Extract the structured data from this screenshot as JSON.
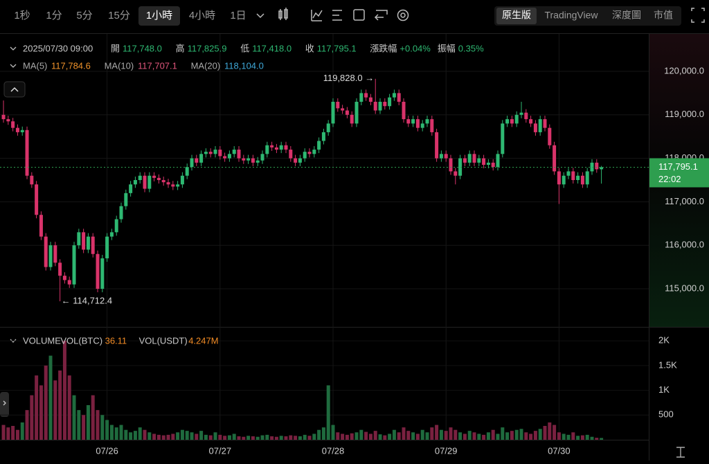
{
  "toolbar": {
    "intervals": [
      "1秒",
      "1分",
      "5分",
      "15分",
      "1小時",
      "4小時",
      "1日"
    ],
    "active_interval": 4,
    "views": [
      "原生版",
      "TradingView",
      "深度圖",
      "市值"
    ],
    "active_view": 0
  },
  "info": {
    "time": "2025/07/30 09:00",
    "items": [
      {
        "label": "開",
        "value": "117,748.0"
      },
      {
        "label": "高",
        "value": "117,825.9"
      },
      {
        "label": "低",
        "value": "117,418.0"
      },
      {
        "label": "收",
        "value": "117,795.1"
      },
      {
        "label": "漲跌幅",
        "value": "+0.04%"
      },
      {
        "label": "振幅",
        "value": "0.35%"
      }
    ],
    "ma": [
      {
        "label": "MA(5)",
        "value": "117,784.6",
        "color": "#f0932b"
      },
      {
        "label": "MA(10)",
        "value": "117,707.1",
        "color": "#e0567c"
      },
      {
        "label": "MA(20)",
        "value": "118,104.0",
        "color": "#3fa9d9"
      }
    ]
  },
  "chart_data": {
    "type": "candlestick",
    "up_color": "#2eb872",
    "down_color": "#d9336a",
    "volume_up_color": "#1f6b3e",
    "volume_down_color": "#7a2140",
    "x": [
      0,
      1,
      2,
      3,
      4,
      5,
      6,
      7,
      8,
      9,
      10,
      11,
      12,
      13,
      14,
      15,
      16,
      17,
      18,
      19,
      20,
      21,
      22,
      23,
      24,
      25,
      26,
      27,
      28,
      29,
      30,
      31,
      32,
      33,
      34,
      35,
      36,
      37,
      38,
      39,
      40,
      41,
      42,
      43,
      44,
      45,
      46,
      47,
      48,
      49,
      50,
      51,
      52,
      53,
      54,
      55,
      56,
      57,
      58,
      59,
      60,
      61,
      62,
      63,
      64,
      65,
      66,
      67,
      68,
      69,
      70,
      71,
      72,
      73,
      74,
      75,
      76,
      77,
      78,
      79,
      80,
      81,
      82,
      83,
      84,
      85,
      86,
      87,
      88,
      89,
      90,
      91,
      92,
      93,
      94,
      95,
      96,
      97,
      98,
      99,
      100,
      101,
      102,
      103,
      104,
      105,
      106,
      107,
      108,
      109,
      110,
      111,
      112,
      113,
      114,
      115,
      116,
      117,
      118,
      119,
      120,
      121,
      122,
      123,
      124,
      125,
      126,
      127
    ],
    "open": [
      119000,
      118900,
      118850,
      118700,
      118600,
      118650,
      117600,
      117400,
      116700,
      116200,
      115500,
      116000,
      115600,
      115300,
      115200,
      115100,
      116000,
      116300,
      115900,
      116200,
      115800,
      115000,
      115700,
      116200,
      116300,
      116600,
      116900,
      117200,
      117400,
      117500,
      117600,
      117300,
      117600,
      117550,
      117500,
      117450,
      117400,
      117350,
      117400,
      117600,
      117800,
      118000,
      117900,
      118100,
      118150,
      118100,
      118200,
      118050,
      118000,
      118100,
      118200,
      118000,
      117950,
      118000,
      117900,
      117950,
      118100,
      118300,
      118250,
      118200,
      118300,
      118200,
      118000,
      117900,
      118000,
      118150,
      118100,
      118200,
      118400,
      118600,
      118800,
      119300,
      119150,
      119100,
      119000,
      118800,
      119300,
      119500,
      119400,
      119300,
      119100,
      119300,
      119200,
      119400,
      119500,
      119300,
      118900,
      118800,
      118900,
      118700,
      118800,
      118900,
      118600,
      118000,
      118100,
      118000,
      117700,
      117600,
      118000,
      117900,
      118100,
      117900,
      118000,
      117850,
      117900,
      117800,
      118100,
      118800,
      118900,
      118800,
      119000,
      119050,
      118900,
      118800,
      118600,
      118900,
      118700,
      118300,
      117700,
      117400,
      117600,
      117700,
      117500,
      117600,
      117400,
      117700,
      117900,
      117748
    ],
    "high": [
      119330,
      118980,
      118930,
      118780,
      118730,
      118730,
      117680,
      117480,
      116780,
      116280,
      116080,
      116080,
      115680,
      115380,
      115280,
      116080,
      116380,
      116380,
      116280,
      116280,
      115880,
      115780,
      116280,
      116380,
      116680,
      116980,
      117280,
      117480,
      117580,
      117680,
      117680,
      117680,
      117680,
      117630,
      117580,
      117530,
      117480,
      117480,
      117680,
      117880,
      118080,
      118080,
      118180,
      118230,
      118230,
      118280,
      118280,
      118130,
      118180,
      118280,
      118280,
      118080,
      118080,
      118080,
      118030,
      118180,
      118380,
      118380,
      118330,
      118380,
      118380,
      118280,
      118080,
      118080,
      118230,
      118230,
      118280,
      118480,
      118680,
      118880,
      119380,
      119380,
      119230,
      119180,
      119080,
      119380,
      119580,
      119580,
      119480,
      119828,
      119380,
      119380,
      119480,
      119580,
      119580,
      119380,
      118980,
      118980,
      118980,
      118880,
      118980,
      118980,
      118680,
      118180,
      118180,
      118080,
      117780,
      118080,
      118080,
      118180,
      118180,
      118080,
      118080,
      117980,
      117980,
      118180,
      118880,
      118980,
      118980,
      119080,
      119300,
      119130,
      118980,
      118880,
      118980,
      118980,
      118780,
      118380,
      117780,
      117680,
      117780,
      117780,
      117680,
      117680,
      117780,
      117980,
      117980,
      117825.9
    ],
    "low": [
      118820,
      118770,
      118620,
      118520,
      118520,
      117520,
      117320,
      116620,
      116120,
      115420,
      115420,
      115520,
      114712.4,
      115120,
      115020,
      115020,
      115920,
      115820,
      115820,
      115720,
      114920,
      114920,
      115620,
      116120,
      116220,
      116520,
      116820,
      117120,
      117320,
      117420,
      117220,
      117220,
      117470,
      117420,
      117370,
      117320,
      117270,
      117270,
      117320,
      117520,
      117720,
      117820,
      117820,
      118020,
      118020,
      118020,
      117970,
      117920,
      117920,
      118020,
      117920,
      117870,
      117870,
      117820,
      117820,
      117870,
      118020,
      118170,
      118120,
      118120,
      118120,
      117920,
      117820,
      117820,
      117920,
      118020,
      118020,
      118120,
      118320,
      118520,
      118720,
      119070,
      119020,
      118920,
      118720,
      118720,
      119220,
      119320,
      119220,
      119020,
      119020,
      119120,
      119120,
      119320,
      119220,
      118820,
      118720,
      118720,
      118620,
      118620,
      118720,
      118520,
      117920,
      117920,
      117920,
      117620,
      117400,
      117520,
      117820,
      117820,
      117820,
      117820,
      117770,
      117770,
      117720,
      117720,
      118020,
      118720,
      118720,
      118720,
      118920,
      118820,
      118720,
      118520,
      118520,
      118620,
      118220,
      117620,
      116950,
      117320,
      117520,
      117420,
      117420,
      117320,
      117320,
      117620,
      117668,
      117418
    ],
    "close": [
      118900,
      118850,
      118700,
      118600,
      118650,
      117600,
      117400,
      116700,
      116200,
      115500,
      116000,
      115600,
      115300,
      115200,
      115100,
      116000,
      116300,
      115900,
      116200,
      115800,
      115000,
      115700,
      116200,
      116300,
      116600,
      116900,
      117200,
      117400,
      117500,
      117600,
      117300,
      117600,
      117550,
      117500,
      117450,
      117400,
      117350,
      117400,
      117600,
      117800,
      118000,
      117900,
      118100,
      118150,
      118100,
      118200,
      118050,
      118000,
      118100,
      118200,
      118000,
      117950,
      118000,
      117900,
      117950,
      118100,
      118300,
      118250,
      118200,
      118300,
      118200,
      118000,
      117900,
      118000,
      118150,
      118100,
      118200,
      118400,
      118600,
      118800,
      119300,
      119150,
      119100,
      119000,
      118800,
      119300,
      119500,
      119400,
      119300,
      119100,
      119300,
      119200,
      119400,
      119500,
      119300,
      118900,
      118800,
      118900,
      118700,
      118800,
      118900,
      118600,
      118000,
      118100,
      118000,
      117700,
      117600,
      118000,
      117900,
      118100,
      117900,
      118000,
      117850,
      117900,
      117800,
      118100,
      118800,
      118900,
      118800,
      119000,
      119050,
      118900,
      118800,
      118600,
      118900,
      118700,
      118300,
      117700,
      117400,
      117600,
      117700,
      117500,
      117600,
      117400,
      117700,
      117900,
      117748,
      117795.1
    ],
    "xlim": [
      -0.74,
      137.06
    ],
    "xticks": [
      {
        "value": 22,
        "label": "07/26"
      },
      {
        "value": 46,
        "label": "07/27"
      },
      {
        "value": 70,
        "label": "07/28"
      },
      {
        "value": 94,
        "label": "07/29"
      },
      {
        "value": 118,
        "label": "07/30"
      }
    ],
    "ylim": [
      114124,
      120876
    ],
    "yticks": [
      {
        "value": 115000,
        "label": "115,000.0"
      },
      {
        "value": 116000,
        "label": "116,000.0"
      },
      {
        "value": 117000,
        "label": "117,000.0"
      },
      {
        "value": 118000,
        "label": "118,000.0"
      },
      {
        "value": 119000,
        "label": "119,000.0"
      },
      {
        "value": 120000,
        "label": "120,000.0"
      }
    ],
    "grid": true,
    "max_marker": {
      "index": 79,
      "text": "119,828.0 →"
    },
    "min_marker": {
      "index": 12,
      "text": "← 114,712.4"
    },
    "last_price": {
      "value": 117795.1,
      "label": "117,795.1",
      "countdown": "22:02",
      "color": "#2e9e4f"
    },
    "volume": {
      "title": "VOLUME",
      "items": [
        {
          "label": "VOL(BTC)",
          "value": "36.11"
        },
        {
          "label": "VOL(USDT)",
          "value": "4.247M"
        }
      ],
      "values": [
        300,
        250,
        280,
        200,
        350,
        600,
        900,
        1300,
        1100,
        1500,
        1700,
        1200,
        1400,
        2000,
        1300,
        900,
        600,
        500,
        700,
        900,
        600,
        500,
        400,
        300,
        250,
        300,
        200,
        150,
        180,
        250,
        200,
        150,
        120,
        100,
        90,
        100,
        120,
        150,
        200,
        180,
        150,
        120,
        180,
        100,
        90,
        150,
        100,
        80,
        90,
        120,
        70,
        60,
        80,
        70,
        60,
        90,
        100,
        70,
        60,
        80,
        70,
        90,
        80,
        70,
        100,
        80,
        120,
        200,
        250,
        1100,
        300,
        150,
        120,
        100,
        130,
        150,
        200,
        160,
        120,
        180,
        110,
        90,
        120,
        200,
        150,
        250,
        180,
        150,
        120,
        200,
        150,
        250,
        300,
        200,
        180,
        250,
        200,
        150,
        120,
        180,
        150,
        120,
        100,
        150,
        200,
        120,
        250,
        150,
        180,
        200,
        220,
        150,
        120,
        180,
        220,
        280,
        350,
        300,
        150,
        120,
        100,
        150,
        80,
        90,
        100,
        60,
        40,
        36.11
      ],
      "ylim": [
        0,
        2170
      ],
      "yticks": [
        500,
        {
          "value": 1000,
          "label": "1K"
        },
        {
          "value": 1500,
          "label": "1.5K"
        },
        {
          "value": 2000,
          "label": "2K"
        }
      ]
    }
  }
}
